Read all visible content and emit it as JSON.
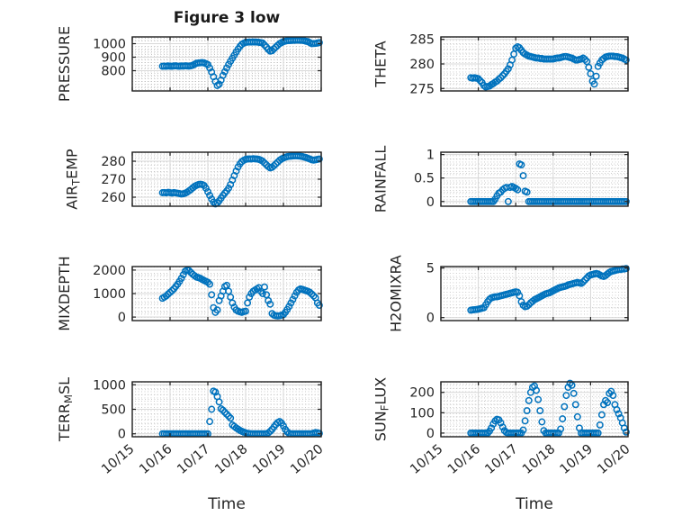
{
  "figure": {
    "title": "Figure 3 low",
    "xlabel": "Time"
  },
  "colors": {
    "marker": "#0072BD",
    "axis_box": "#1f1f1f",
    "grid_major": "#d9d9d9",
    "grid_minor": "#bdbdbd",
    "text": "#252525"
  },
  "chart_data": {
    "type": "scatter",
    "marker": "open-circle",
    "title": "Figure 3 low",
    "xlabel": "Time",
    "x_unit": "days since 10/15",
    "xlim": [
      0,
      5
    ],
    "xticks": [
      0,
      1,
      2,
      3,
      4,
      5
    ],
    "xticklabels": [
      "10/15",
      "10/16",
      "10/17",
      "10/18",
      "10/19",
      "10/20"
    ],
    "grid": "major and minor (dotted)",
    "x": [
      0.8,
      0.85,
      0.9,
      0.95,
      1.0,
      1.05,
      1.1,
      1.15,
      1.2,
      1.25,
      1.3,
      1.35,
      1.4,
      1.45,
      1.5,
      1.55,
      1.6,
      1.65,
      1.7,
      1.75,
      1.8,
      1.85,
      1.9,
      1.95,
      2.0,
      2.05,
      2.1,
      2.15,
      2.2,
      2.25,
      2.3,
      2.35,
      2.4,
      2.45,
      2.5,
      2.55,
      2.6,
      2.65,
      2.7,
      2.75,
      2.8,
      2.85,
      2.9,
      2.95,
      3.0,
      3.05,
      3.1,
      3.15,
      3.2,
      3.25,
      3.3,
      3.35,
      3.4,
      3.45,
      3.5,
      3.55,
      3.6,
      3.65,
      3.7,
      3.75,
      3.8,
      3.85,
      3.9,
      3.95,
      4.0,
      4.05,
      4.1,
      4.15,
      4.2,
      4.25,
      4.3,
      4.35,
      4.4,
      4.45,
      4.5,
      4.55,
      4.6,
      4.65,
      4.7,
      4.75,
      4.8,
      4.85,
      4.9,
      4.95
    ],
    "subplots": [
      {
        "name": "PRESSURE",
        "row": 0,
        "col": 0,
        "ylabel_parts": [
          {
            "text": "PRESSURE",
            "sub": false
          }
        ],
        "ylim": [
          650,
          1050
        ],
        "yticks": [
          800,
          900,
          1000
        ],
        "y_minor_step": 20,
        "y": [
          833,
          834,
          833,
          835,
          834,
          833,
          835,
          836,
          834,
          833,
          835,
          834,
          836,
          835,
          834,
          836,
          840,
          848,
          855,
          857,
          859,
          860,
          858,
          852,
          845,
          820,
          790,
          755,
          720,
          690,
          700,
          730,
          765,
          793,
          820,
          846,
          870,
          893,
          915,
          938,
          960,
          980,
          995,
          1004,
          1010,
          1011,
          1012,
          1012,
          1013,
          1012,
          1012,
          1010,
          1008,
          1005,
          990,
          975,
          958,
          945,
          948,
          962,
          975,
          988,
          1000,
          1008,
          1015,
          1019,
          1022,
          1023,
          1024,
          1025,
          1025,
          1026,
          1026,
          1025,
          1025,
          1022,
          1018,
          1015,
          1008,
          1000,
          1001,
          1002,
          1005,
          1008
        ]
      },
      {
        "name": "THETA",
        "row": 0,
        "col": 1,
        "ylabel_parts": [
          {
            "text": "THETA",
            "sub": false
          }
        ],
        "ylim": [
          274.5,
          285.5
        ],
        "yticks": [
          275,
          280,
          285
        ],
        "y_minor_step": 1,
        "y": [
          277.2,
          277.1,
          277.2,
          277.1,
          277.0,
          276.6,
          276.2,
          275.6,
          275.3,
          275.4,
          275.5,
          275.8,
          276.0,
          276.3,
          276.5,
          276.9,
          277.2,
          277.6,
          278.0,
          278.5,
          279.0,
          279.8,
          280.8,
          282.0,
          283.2,
          283.5,
          283.3,
          282.8,
          282.3,
          282.0,
          281.8,
          281.6,
          281.5,
          281.4,
          281.3,
          281.2,
          281.2,
          281.1,
          281.1,
          281.0,
          281.0,
          281.0,
          281.0,
          281.0,
          281.0,
          281.1,
          281.2,
          281.2,
          281.3,
          281.4,
          281.5,
          281.5,
          281.4,
          281.3,
          281.2,
          281.0,
          280.8,
          280.8,
          280.9,
          281.0,
          281.2,
          280.9,
          280.5,
          279.3,
          278.0,
          276.5,
          275.9,
          277.5,
          279.5,
          280.2,
          280.8,
          281.1,
          281.4,
          281.5,
          281.6,
          281.6,
          281.6,
          281.5,
          281.5,
          281.4,
          281.3,
          281.2,
          281.0,
          280.8
        ]
      },
      {
        "name": "AIR_TEMP",
        "row": 1,
        "col": 0,
        "ylabel_parts": [
          {
            "text": "AIR",
            "sub": false
          },
          {
            "text": "T",
            "sub": true
          },
          {
            "text": "EMP",
            "sub": false
          }
        ],
        "ylim": [
          255,
          285
        ],
        "yticks": [
          260,
          270,
          280
        ],
        "y_minor_step": 2,
        "y": [
          262.5,
          262.6,
          262.4,
          262.7,
          262.5,
          262.3,
          262.6,
          262.4,
          262.2,
          262.0,
          261.8,
          261.9,
          262.2,
          262.8,
          263.5,
          264.3,
          265.2,
          266.0,
          266.6,
          267.0,
          267.2,
          267.0,
          266.5,
          265.0,
          263.0,
          261.0,
          259.0,
          257.3,
          256.3,
          256.8,
          258.0,
          259.5,
          261.0,
          262.3,
          263.5,
          265.0,
          267.0,
          269.5,
          272.0,
          274.5,
          276.8,
          278.5,
          279.8,
          280.5,
          281.0,
          281.2,
          281.3,
          281.2,
          281.4,
          281.3,
          281.2,
          281.0,
          280.6,
          280.0,
          279.0,
          278.0,
          277.0,
          276.3,
          276.6,
          277.5,
          278.5,
          279.5,
          280.5,
          281.2,
          281.8,
          282.2,
          282.5,
          282.7,
          282.8,
          282.9,
          283.0,
          283.0,
          282.9,
          282.8,
          282.6,
          282.3,
          282.0,
          281.6,
          281.2,
          280.8,
          280.6,
          280.8,
          281.0,
          281.2
        ]
      },
      {
        "name": "RAINFALL",
        "row": 1,
        "col": 1,
        "ylabel_parts": [
          {
            "text": "RAINFALL",
            "sub": false
          }
        ],
        "ylim": [
          -0.1,
          1.05
        ],
        "yticks": [
          0,
          0.5,
          1
        ],
        "y_minor_step": 0.1,
        "y": [
          0,
          0,
          0,
          0,
          0,
          0,
          0,
          0,
          0,
          0,
          0,
          0,
          0,
          0.05,
          0.12,
          0.18,
          0.2,
          0.25,
          0.28,
          0.3,
          0,
          0.3,
          0.32,
          0.3,
          0.28,
          0.25,
          0.8,
          0.78,
          0.55,
          0.22,
          0.2,
          0,
          0,
          0,
          0,
          0,
          0,
          0,
          0,
          0,
          0,
          0,
          0,
          0,
          0,
          0,
          0,
          0,
          0,
          0,
          0,
          0,
          0,
          0,
          0,
          0,
          0,
          0,
          0,
          0,
          0,
          0,
          0,
          0,
          0,
          0,
          0,
          0,
          0,
          0,
          0,
          0,
          0,
          0,
          0,
          0,
          0,
          0,
          0,
          0,
          0,
          0,
          0,
          0
        ]
      },
      {
        "name": "MIXDEPTH",
        "row": 2,
        "col": 0,
        "ylabel_parts": [
          {
            "text": "MIXDEPTH",
            "sub": false
          }
        ],
        "ylim": [
          -150,
          2150
        ],
        "yticks": [
          0,
          1000,
          2000
        ],
        "y_minor_step": 200,
        "y": [
          800,
          850,
          900,
          980,
          1050,
          1120,
          1200,
          1300,
          1400,
          1520,
          1650,
          1800,
          1950,
          2000,
          1980,
          1900,
          1820,
          1760,
          1700,
          1680,
          1650,
          1600,
          1560,
          1520,
          1480,
          1400,
          950,
          400,
          200,
          300,
          700,
          900,
          1100,
          1300,
          1350,
          1100,
          850,
          600,
          420,
          300,
          250,
          220,
          200,
          230,
          250,
          600,
          850,
          1000,
          1100,
          1150,
          1200,
          1250,
          1100,
          1000,
          1280,
          950,
          700,
          550,
          150,
          80,
          60,
          50,
          60,
          80,
          100,
          200,
          320,
          450,
          600,
          750,
          900,
          1050,
          1150,
          1200,
          1180,
          1150,
          1120,
          1100,
          1050,
          980,
          900,
          820,
          600,
          500
        ]
      },
      {
        "name": "H2OMIXRA",
        "row": 2,
        "col": 1,
        "ylabel_parts": [
          {
            "text": "H2OMIXRA",
            "sub": false
          }
        ],
        "ylim": [
          -0.3,
          5.15
        ],
        "yticks": [
          0,
          5
        ],
        "y_minor_step": 1,
        "y": [
          0.75,
          0.78,
          0.8,
          0.82,
          0.85,
          0.9,
          0.95,
          1.0,
          1.3,
          1.6,
          1.85,
          2.0,
          2.05,
          2.1,
          2.1,
          2.15,
          2.2,
          2.25,
          2.3,
          2.35,
          2.4,
          2.45,
          2.5,
          2.55,
          2.6,
          2.55,
          2.2,
          1.6,
          1.25,
          1.1,
          1.15,
          1.3,
          1.5,
          1.65,
          1.8,
          1.9,
          2.0,
          2.1,
          2.2,
          2.3,
          2.4,
          2.45,
          2.5,
          2.6,
          2.7,
          2.8,
          2.9,
          3.0,
          3.05,
          3.1,
          3.15,
          3.2,
          3.3,
          3.35,
          3.4,
          3.45,
          3.5,
          3.55,
          3.5,
          3.45,
          3.6,
          3.8,
          4.0,
          4.2,
          4.3,
          4.35,
          4.4,
          4.45,
          4.4,
          4.3,
          4.2,
          4.15,
          4.25,
          4.4,
          4.55,
          4.65,
          4.7,
          4.75,
          4.8,
          4.85,
          4.85,
          4.9,
          4.9,
          4.95
        ]
      },
      {
        "name": "TERR_MSL",
        "row": 3,
        "col": 0,
        "ylabel_parts": [
          {
            "text": "TERR",
            "sub": false
          },
          {
            "text": "M",
            "sub": true
          },
          {
            "text": "SL",
            "sub": false
          }
        ],
        "ylim": [
          -60,
          1060
        ],
        "yticks": [
          0,
          500,
          1000
        ],
        "y_minor_step": 100,
        "y": [
          0,
          0,
          0,
          0,
          0,
          0,
          0,
          0,
          0,
          0,
          0,
          0,
          0,
          0,
          0,
          0,
          0,
          0,
          0,
          0,
          0,
          0,
          0,
          0,
          0,
          250,
          500,
          870,
          850,
          760,
          650,
          510,
          480,
          440,
          400,
          360,
          320,
          180,
          150,
          120,
          95,
          70,
          50,
          35,
          20,
          10,
          5,
          0,
          0,
          0,
          0,
          0,
          0,
          0,
          0,
          0,
          20,
          50,
          90,
          140,
          190,
          230,
          250,
          220,
          160,
          90,
          40,
          10,
          0,
          0,
          0,
          0,
          0,
          0,
          0,
          0,
          0,
          0,
          0,
          0,
          15,
          25,
          20,
          10
        ]
      },
      {
        "name": "SUN_FLUX",
        "row": 3,
        "col": 1,
        "ylabel_parts": [
          {
            "text": "SUN",
            "sub": false
          },
          {
            "text": "F",
            "sub": true
          },
          {
            "text": "LUX",
            "sub": false
          }
        ],
        "ylim": [
          -18,
          252
        ],
        "yticks": [
          0,
          100,
          200
        ],
        "y_minor_step": 20,
        "y": [
          0,
          0,
          0,
          0,
          0,
          0,
          0,
          0,
          0,
          0,
          10,
          25,
          45,
          60,
          68,
          65,
          50,
          30,
          12,
          3,
          0,
          0,
          0,
          0,
          0,
          0,
          0,
          0,
          15,
          60,
          110,
          160,
          200,
          225,
          232,
          210,
          165,
          110,
          55,
          12,
          0,
          0,
          0,
          0,
          0,
          0,
          0,
          0,
          20,
          70,
          130,
          185,
          225,
          245,
          235,
          195,
          140,
          80,
          25,
          0,
          0,
          0,
          0,
          0,
          0,
          0,
          0,
          0,
          0,
          40,
          90,
          140,
          160,
          150,
          195,
          205,
          185,
          140,
          115,
          95,
          75,
          50,
          25,
          5
        ]
      }
    ]
  }
}
